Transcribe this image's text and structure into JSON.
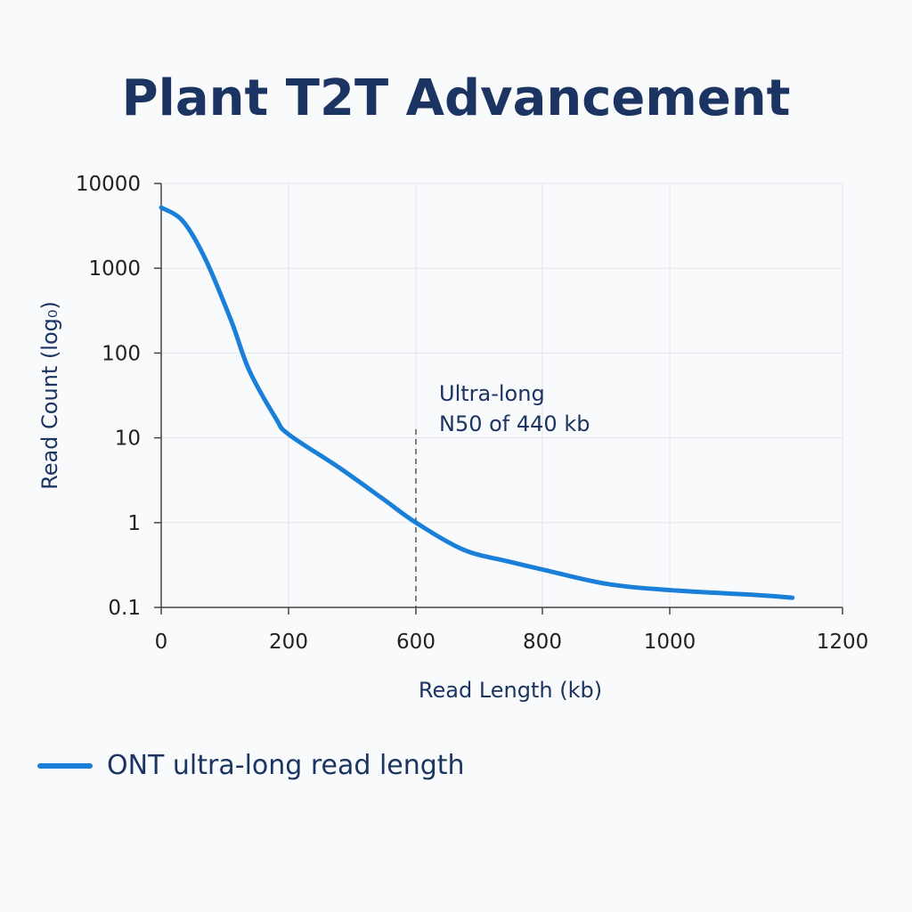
{
  "chart_data": {
    "type": "line",
    "title": "Plant T2T Advancement",
    "xlabel": "Read Length (kb)",
    "ylabel": "Read Count (log₀)",
    "x_tick_labels": [
      "0",
      "200",
      "600",
      "800",
      "1000",
      "1200"
    ],
    "x_tick_values": [
      0,
      200,
      600,
      800,
      1000,
      1200
    ],
    "y_scale": "log",
    "y_tick_labels": [
      "10000",
      "1000",
      "100",
      "10",
      "1",
      "0.1"
    ],
    "y_tick_values": [
      10000,
      1000,
      100,
      10,
      1,
      0.1
    ],
    "ylim": [
      0.1,
      10000
    ],
    "xlim": [
      0,
      1200
    ],
    "grid": true,
    "legend_position": "bottom-left",
    "series": [
      {
        "name": "ONT ultra-long read length",
        "color": "#1a7fd8",
        "x": [
          0,
          34,
          69,
          110,
          138,
          180,
          200,
          357,
          497,
          600,
          675,
          745,
          800,
          900,
          1000,
          1101,
          1142
        ],
        "y": [
          5200,
          3600,
          1300,
          240,
          63,
          17,
          11,
          4.5,
          1.9,
          1,
          0.48,
          0.35,
          0.28,
          0.19,
          0.16,
          0.14,
          0.13
        ]
      }
    ],
    "annotations": [
      {
        "text_line1": "Ultra-long",
        "text_line2": "N50 of 440 kb",
        "x": 600,
        "style": "dashed-vertical-line"
      }
    ]
  }
}
